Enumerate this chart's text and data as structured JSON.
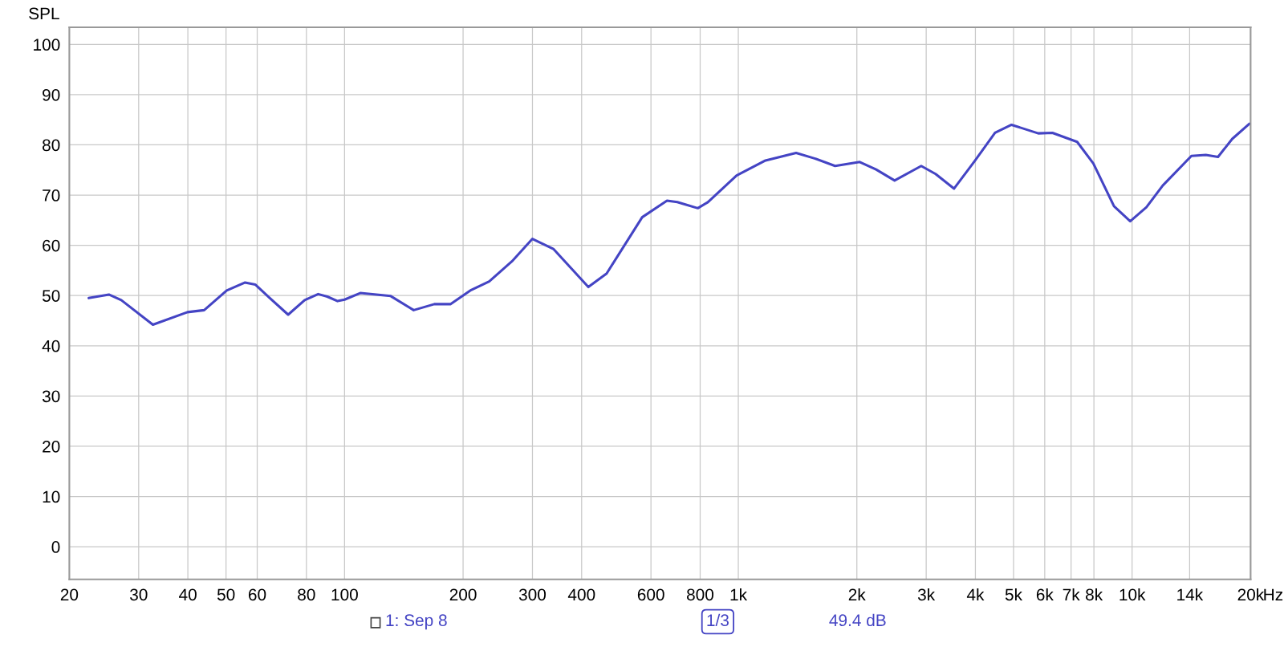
{
  "chart_data": {
    "type": "line",
    "ylabel": "SPL",
    "xlim": [
      20,
      20000
    ],
    "ylim": [
      -6.5,
      103.4
    ],
    "log": "x",
    "grid": true,
    "marker": "none",
    "line_style": "solid",
    "legend": "bottom",
    "xticks": [
      20,
      30,
      40,
      50,
      60,
      80,
      100,
      200,
      300,
      400,
      600,
      800,
      {
        "value": 1000,
        "label": "1k"
      },
      {
        "value": 2000,
        "label": "2k"
      },
      {
        "value": 3000,
        "label": "3k"
      },
      {
        "value": 4000,
        "label": "4k"
      },
      {
        "value": 5000,
        "label": "5k"
      },
      {
        "value": 6000,
        "label": "6k"
      },
      {
        "value": 7000,
        "label": "7k"
      },
      {
        "value": 8000,
        "label": "8k"
      },
      {
        "value": 10000,
        "label": "10k"
      },
      {
        "value": 14000,
        "label": "14k"
      },
      {
        "value": 20000,
        "label": "20k"
      }
    ],
    "xlabel": "Hz",
    "yticks": [
      0,
      10,
      20,
      30,
      40,
      50,
      60,
      70,
      80,
      90,
      100
    ],
    "annotations": [
      "1/3",
      "49.4 dB"
    ],
    "series": [
      {
        "name": "1: Sep 8",
        "color": "#4444c4",
        "x": [
          22.4,
          25.2,
          27.1,
          32.6,
          39.9,
          44.0,
          50.2,
          55.9,
          59.3,
          64.6,
          71.9,
          79.2,
          85.7,
          90.4,
          96.0,
          100,
          109.6,
          131,
          149.8,
          169,
          186,
          209.6,
          233,
          266,
          300,
          339,
          416,
          463,
          570,
          659,
          700,
          789,
          837,
          990,
          1172,
          1402,
          1562,
          1761,
          2034,
          2238,
          2494,
          2914,
          3170,
          3531,
          3977,
          4487,
          4941,
          5777,
          6277,
          7253,
          7973,
          8996,
          9891,
          10876,
          11965,
          14147,
          15390,
          16528,
          17965,
          19863
        ],
        "values": [
          49.5,
          50.2,
          49.1,
          44.2,
          46.7,
          47.1,
          51.0,
          52.6,
          52.2,
          49.5,
          46.2,
          49.1,
          50.3,
          49.8,
          48.9,
          49.2,
          50.5,
          49.9,
          47.1,
          48.3,
          48.3,
          51.1,
          52.8,
          56.8,
          61.3,
          59.3,
          51.7,
          54.4,
          65.6,
          68.9,
          68.6,
          67.4,
          68.6,
          73.9,
          76.9,
          78.4,
          77.3,
          75.8,
          76.6,
          75.1,
          72.9,
          75.8,
          74.2,
          71.3,
          76.7,
          82.4,
          84.0,
          82.3,
          82.4,
          80.6,
          76.3,
          67.8,
          64.8,
          67.6,
          71.9,
          77.8,
          78.0,
          77.6,
          81.2,
          84.2
        ]
      }
    ]
  }
}
